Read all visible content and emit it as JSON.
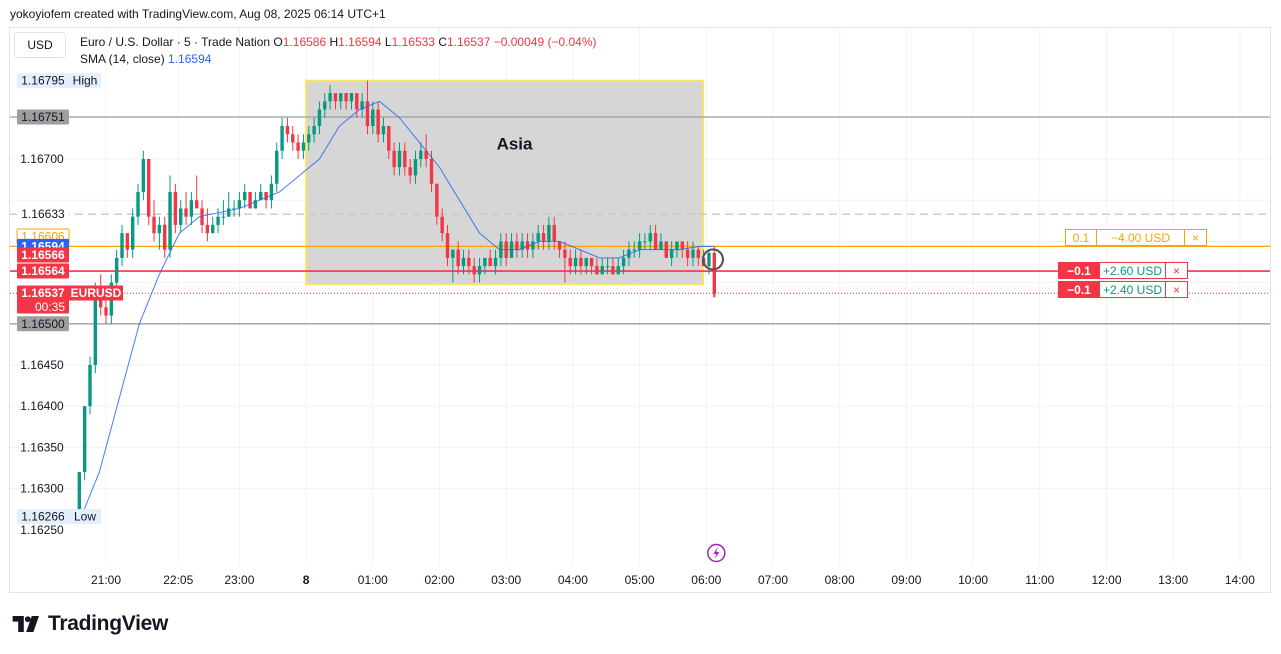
{
  "caption": "yokoyiofem created with TradingView.com, Aug 08, 2025 06:14 UTC+1",
  "currency_button": "USD",
  "legend": {
    "symbol": "Euro / U.S. Dollar · 5 · Trade Nation",
    "o_label": "O",
    "o": "1.16586",
    "h_label": "H",
    "h": "1.16594",
    "l_label": "L",
    "l": "1.16533",
    "c_label": "C",
    "c": "1.16537",
    "change": "−0.00049 (−0.04%)"
  },
  "sma": {
    "label": "SMA (14, close)",
    "value": "1.16594"
  },
  "brand": "TradingView",
  "colors": {
    "up": "#089981",
    "down": "#f23645",
    "sma": "#2962ff",
    "session_box": "#d6d6d6",
    "session_border": "#f5e663"
  },
  "trades": [
    {
      "qty": "0.1",
      "pl": "−4.00 USD",
      "close": "×"
    },
    {
      "qty": "−0.1",
      "pl": "+2.60 USD",
      "close": "×"
    },
    {
      "qty": "−0.1",
      "pl": "+2.40 USD",
      "close": "×"
    }
  ],
  "chart_data": {
    "type": "candlestick",
    "symbol": "EURUSD",
    "ylim": [
      1.1624,
      1.1681
    ],
    "x_ticks": [
      "21:00",
      "22:05",
      "23:00",
      "8",
      "01:00",
      "02:00",
      "03:00",
      "04:00",
      "05:00",
      "06:00",
      "07:00",
      "08:00",
      "09:00",
      "10:00",
      "11:00",
      "12:00",
      "13:00",
      "14:00"
    ],
    "x_tick_hours": [
      21,
      22.083,
      23,
      24,
      25,
      26,
      27,
      28,
      29,
      30,
      31,
      32,
      33,
      34,
      35,
      36,
      37,
      38
    ],
    "y_ticks": [
      1.163,
      1.1635,
      1.164,
      1.1645,
      1.167
    ],
    "y_tick_labels": [
      "1.16300",
      "1.16350",
      "1.16400",
      "1.16450",
      "1.16700"
    ],
    "y_tick_last": {
      "value": 1.1625,
      "label": "1.16250"
    },
    "price_labels": [
      {
        "value": 1.16795,
        "label": "1.16795",
        "tag": "High",
        "style": "light"
      },
      {
        "value": 1.16751,
        "label": "1.16751",
        "tag": "",
        "style": "gray"
      },
      {
        "value": 1.16633,
        "label": "1.16633",
        "tag": "",
        "style": "plain"
      },
      {
        "value": 1.16606,
        "label": "1.16606",
        "tag": "",
        "style": "orange"
      },
      {
        "value": 1.16594,
        "label": "1.16594",
        "tag": "",
        "style": "blue"
      },
      {
        "value": 1.16566,
        "label": "1.16566",
        "tag": "",
        "style": "red"
      },
      {
        "value": 1.16564,
        "label": "1.16564",
        "tag": "",
        "style": "red"
      },
      {
        "value": 1.16537,
        "label": "1.16537",
        "tag": "EURUSD",
        "sub": "00:35",
        "style": "red"
      },
      {
        "value": 1.165,
        "label": "1.16500",
        "tag": "",
        "style": "gray"
      },
      {
        "value": 1.16266,
        "label": "1.16266",
        "tag": "Low",
        "style": "light"
      }
    ],
    "horizontal_lines": [
      {
        "value": 1.16751,
        "color": "#9e9e9e",
        "style": "solid"
      },
      {
        "value": 1.165,
        "color": "#9e9e9e",
        "style": "solid"
      },
      {
        "value": 1.16633,
        "color": "#c8c8c8",
        "style": "dashed"
      },
      {
        "value": 1.16594,
        "color": "#f7a600",
        "style": "solid"
      },
      {
        "value": 1.16564,
        "color": "#f23645",
        "style": "solid"
      },
      {
        "value": 1.16537,
        "color": "#f23645",
        "style": "dotted"
      }
    ],
    "session_box": {
      "label": "Asia",
      "x_start": 24,
      "x_end": 29.95,
      "y_low": 1.16548,
      "y_high": 1.16795
    },
    "candles": [
      [
        20.6,
        1.1627,
        1.1632,
        1.1627,
        1.1632
      ],
      [
        20.68,
        1.1632,
        1.164,
        1.1631,
        1.164
      ],
      [
        20.76,
        1.164,
        1.1646,
        1.1639,
        1.1645
      ],
      [
        20.84,
        1.1645,
        1.1655,
        1.1644,
        1.1654
      ],
      [
        20.92,
        1.1654,
        1.1656,
        1.1651,
        1.1652
      ],
      [
        21.0,
        1.1652,
        1.1654,
        1.165,
        1.1651
      ],
      [
        21.08,
        1.1651,
        1.1656,
        1.165,
        1.1655
      ],
      [
        21.16,
        1.1655,
        1.1659,
        1.1654,
        1.1658
      ],
      [
        21.24,
        1.1658,
        1.1662,
        1.1657,
        1.1661
      ],
      [
        21.32,
        1.1661,
        1.1661,
        1.1658,
        1.1659
      ],
      [
        21.4,
        1.1659,
        1.1664,
        1.1658,
        1.1663
      ],
      [
        21.48,
        1.1663,
        1.1667,
        1.1662,
        1.1666
      ],
      [
        21.56,
        1.1666,
        1.1671,
        1.1665,
        1.167
      ],
      [
        21.64,
        1.167,
        1.167,
        1.1662,
        1.1663
      ],
      [
        21.72,
        1.1663,
        1.1665,
        1.166,
        1.1661
      ],
      [
        21.8,
        1.1661,
        1.1663,
        1.1659,
        1.1662
      ],
      [
        21.88,
        1.1662,
        1.1663,
        1.1658,
        1.1659
      ],
      [
        21.96,
        1.1659,
        1.1668,
        1.1658,
        1.1666
      ],
      [
        22.04,
        1.1666,
        1.1667,
        1.1661,
        1.1662
      ],
      [
        22.12,
        1.1662,
        1.1665,
        1.1661,
        1.1664
      ],
      [
        22.2,
        1.1664,
        1.1666,
        1.1662,
        1.1663
      ],
      [
        22.28,
        1.1663,
        1.1666,
        1.1662,
        1.1665
      ],
      [
        22.36,
        1.1665,
        1.1668,
        1.1664,
        1.1664
      ],
      [
        22.44,
        1.1664,
        1.1665,
        1.1661,
        1.1662
      ],
      [
        22.52,
        1.1662,
        1.1664,
        1.166,
        1.1661
      ],
      [
        22.6,
        1.1661,
        1.1663,
        1.1661,
        1.1662
      ],
      [
        22.68,
        1.1662,
        1.1664,
        1.1661,
        1.1663
      ],
      [
        22.76,
        1.1663,
        1.1665,
        1.1662,
        1.1663
      ],
      [
        22.84,
        1.1663,
        1.1666,
        1.1663,
        1.1664
      ],
      [
        22.92,
        1.1664,
        1.1665,
        1.1663,
        1.1664
      ],
      [
        23.0,
        1.1664,
        1.1666,
        1.1663,
        1.1665
      ],
      [
        23.08,
        1.1665,
        1.1667,
        1.1664,
        1.1666
      ],
      [
        23.16,
        1.1666,
        1.1666,
        1.1664,
        1.1664
      ],
      [
        23.24,
        1.1664,
        1.1666,
        1.1664,
        1.1665
      ],
      [
        23.32,
        1.1665,
        1.1667,
        1.1665,
        1.1666
      ],
      [
        23.4,
        1.1666,
        1.1666,
        1.1664,
        1.1665
      ],
      [
        23.48,
        1.1665,
        1.1668,
        1.1664,
        1.1667
      ],
      [
        23.56,
        1.1667,
        1.1672,
        1.1666,
        1.1671
      ],
      [
        23.64,
        1.1671,
        1.1675,
        1.167,
        1.1674
      ],
      [
        23.72,
        1.1674,
        1.1675,
        1.1672,
        1.1673
      ],
      [
        23.8,
        1.1673,
        1.1674,
        1.1671,
        1.1672
      ],
      [
        23.88,
        1.1672,
        1.1673,
        1.167,
        1.1671
      ],
      [
        23.96,
        1.1671,
        1.1673,
        1.167,
        1.1672
      ],
      [
        24.04,
        1.1672,
        1.1674,
        1.1671,
        1.1673
      ],
      [
        24.12,
        1.1673,
        1.1675,
        1.1672,
        1.1674
      ],
      [
        24.2,
        1.1674,
        1.1677,
        1.1673,
        1.1676
      ],
      [
        24.28,
        1.1676,
        1.1678,
        1.1675,
        1.1677
      ],
      [
        24.36,
        1.1677,
        1.1679,
        1.1676,
        1.1678
      ],
      [
        24.44,
        1.1678,
        1.1678,
        1.1676,
        1.1677
      ],
      [
        24.52,
        1.1677,
        1.1678,
        1.1676,
        1.1678
      ],
      [
        24.6,
        1.1678,
        1.1678,
        1.1676,
        1.1677
      ],
      [
        24.68,
        1.1677,
        1.1678,
        1.1676,
        1.1678
      ],
      [
        24.76,
        1.1678,
        1.1678,
        1.1675,
        1.1676
      ],
      [
        24.84,
        1.1676,
        1.1678,
        1.1675,
        1.1677
      ],
      [
        24.92,
        1.1677,
        1.16795,
        1.1673,
        1.1674
      ],
      [
        25.0,
        1.1674,
        1.1677,
        1.1673,
        1.1676
      ],
      [
        25.08,
        1.1676,
        1.1677,
        1.1672,
        1.1673
      ],
      [
        25.16,
        1.1673,
        1.1675,
        1.1672,
        1.1674
      ],
      [
        25.24,
        1.1674,
        1.1674,
        1.167,
        1.1671
      ],
      [
        25.32,
        1.1671,
        1.1672,
        1.1668,
        1.1669
      ],
      [
        25.4,
        1.1669,
        1.1672,
        1.1668,
        1.1671
      ],
      [
        25.48,
        1.1671,
        1.1672,
        1.1668,
        1.1669
      ],
      [
        25.56,
        1.1669,
        1.167,
        1.1667,
        1.1668
      ],
      [
        25.64,
        1.1668,
        1.1671,
        1.1667,
        1.167
      ],
      [
        25.72,
        1.167,
        1.1672,
        1.1669,
        1.1671
      ],
      [
        25.8,
        1.1671,
        1.1673,
        1.1669,
        1.167
      ],
      [
        25.88,
        1.167,
        1.1671,
        1.1666,
        1.1667
      ],
      [
        25.96,
        1.1667,
        1.1667,
        1.1662,
        1.1663
      ],
      [
        26.04,
        1.1663,
        1.1664,
        1.166,
        1.1661
      ],
      [
        26.12,
        1.1661,
        1.1662,
        1.1657,
        1.1658
      ],
      [
        26.2,
        1.1658,
        1.1659,
        1.1655,
        1.1659
      ],
      [
        26.28,
        1.1659,
        1.166,
        1.1656,
        1.1657
      ],
      [
        26.36,
        1.1657,
        1.1659,
        1.1656,
        1.1658
      ],
      [
        26.44,
        1.1658,
        1.1659,
        1.1656,
        1.1657
      ],
      [
        26.52,
        1.1657,
        1.1658,
        1.1655,
        1.1656
      ],
      [
        26.6,
        1.1656,
        1.1658,
        1.1655,
        1.1657
      ],
      [
        26.68,
        1.1657,
        1.1658,
        1.1656,
        1.1658
      ],
      [
        26.76,
        1.1658,
        1.1659,
        1.1657,
        1.1657
      ],
      [
        26.84,
        1.1657,
        1.1659,
        1.1656,
        1.1658
      ],
      [
        26.92,
        1.1658,
        1.1661,
        1.1657,
        1.166
      ],
      [
        27.0,
        1.166,
        1.1661,
        1.1657,
        1.1658
      ],
      [
        27.08,
        1.1658,
        1.1661,
        1.1658,
        1.166
      ],
      [
        27.16,
        1.166,
        1.1661,
        1.1658,
        1.1659
      ],
      [
        27.24,
        1.1659,
        1.1661,
        1.1658,
        1.166
      ],
      [
        27.32,
        1.166,
        1.1661,
        1.1658,
        1.1659
      ],
      [
        27.4,
        1.1659,
        1.1661,
        1.1658,
        1.166
      ],
      [
        27.48,
        1.166,
        1.1662,
        1.1659,
        1.1661
      ],
      [
        27.56,
        1.1661,
        1.1662,
        1.1659,
        1.166
      ],
      [
        27.64,
        1.166,
        1.1663,
        1.1659,
        1.1662
      ],
      [
        27.72,
        1.1662,
        1.1663,
        1.1659,
        1.166
      ],
      [
        27.8,
        1.166,
        1.166,
        1.1658,
        1.1659
      ],
      [
        27.88,
        1.1659,
        1.166,
        1.1655,
        1.1658
      ],
      [
        27.96,
        1.1658,
        1.1659,
        1.1656,
        1.1657
      ],
      [
        28.04,
        1.1657,
        1.1659,
        1.1656,
        1.1658
      ],
      [
        28.12,
        1.1658,
        1.1659,
        1.1656,
        1.1657
      ],
      [
        28.2,
        1.1657,
        1.1658,
        1.1656,
        1.1658
      ],
      [
        28.28,
        1.1658,
        1.1658,
        1.1656,
        1.1657
      ],
      [
        28.36,
        1.1657,
        1.1658,
        1.1656,
        1.1656
      ],
      [
        28.44,
        1.1656,
        1.1658,
        1.1656,
        1.1657
      ],
      [
        28.52,
        1.1657,
        1.1658,
        1.1656,
        1.1657
      ],
      [
        28.6,
        1.1657,
        1.1658,
        1.1656,
        1.1656
      ],
      [
        28.68,
        1.1656,
        1.1658,
        1.1656,
        1.1657
      ],
      [
        28.76,
        1.1657,
        1.1659,
        1.1656,
        1.1658
      ],
      [
        28.84,
        1.1658,
        1.166,
        1.1657,
        1.1659
      ],
      [
        28.92,
        1.1659,
        1.166,
        1.1658,
        1.1659
      ],
      [
        29.0,
        1.1659,
        1.1661,
        1.1658,
        1.166
      ],
      [
        29.08,
        1.166,
        1.1661,
        1.1659,
        1.166
      ],
      [
        29.16,
        1.166,
        1.1662,
        1.1659,
        1.1661
      ],
      [
        29.24,
        1.1661,
        1.1662,
        1.1659,
        1.1659
      ],
      [
        29.32,
        1.1659,
        1.1661,
        1.1659,
        1.166
      ],
      [
        29.4,
        1.166,
        1.166,
        1.1658,
        1.1658
      ],
      [
        29.48,
        1.1658,
        1.166,
        1.1657,
        1.1659
      ],
      [
        29.56,
        1.1659,
        1.166,
        1.1658,
        1.166
      ],
      [
        29.64,
        1.166,
        1.166,
        1.1658,
        1.1659
      ],
      [
        29.72,
        1.1659,
        1.166,
        1.1657,
        1.1658
      ],
      [
        29.8,
        1.1658,
        1.166,
        1.1657,
        1.1659
      ],
      [
        29.88,
        1.1659,
        1.16594,
        1.1657,
        1.1658
      ],
      [
        29.96,
        1.1658,
        1.1659,
        1.1657,
        1.1657
      ],
      [
        30.04,
        1.1657,
        1.1659,
        1.1656,
        1.16586
      ],
      [
        30.12,
        1.16586,
        1.16594,
        1.16533,
        1.16537
      ]
    ],
    "sma_points": [
      [
        20.6,
        1.1626
      ],
      [
        20.9,
        1.1632
      ],
      [
        21.2,
        1.1641
      ],
      [
        21.5,
        1.165
      ],
      [
        21.8,
        1.1656
      ],
      [
        22.1,
        1.1661
      ],
      [
        22.4,
        1.1663
      ],
      [
        22.7,
        1.16635
      ],
      [
        23.0,
        1.1664
      ],
      [
        23.3,
        1.1665
      ],
      [
        23.6,
        1.1666
      ],
      [
        23.9,
        1.1668
      ],
      [
        24.2,
        1.167
      ],
      [
        24.5,
        1.1674
      ],
      [
        24.8,
        1.1676
      ],
      [
        25.1,
        1.1677
      ],
      [
        25.4,
        1.1675
      ],
      [
        25.7,
        1.1672
      ],
      [
        26.0,
        1.1669
      ],
      [
        26.3,
        1.1665
      ],
      [
        26.6,
        1.1661
      ],
      [
        26.9,
        1.1659
      ],
      [
        27.2,
        1.1659
      ],
      [
        27.5,
        1.166
      ],
      [
        27.8,
        1.166
      ],
      [
        28.1,
        1.1659
      ],
      [
        28.4,
        1.1658
      ],
      [
        28.7,
        1.1658
      ],
      [
        29.0,
        1.1659
      ],
      [
        29.3,
        1.1659
      ],
      [
        29.6,
        1.1659
      ],
      [
        29.9,
        1.16594
      ],
      [
        30.12,
        1.16594
      ]
    ],
    "event_marker_hour": 30.15
  }
}
